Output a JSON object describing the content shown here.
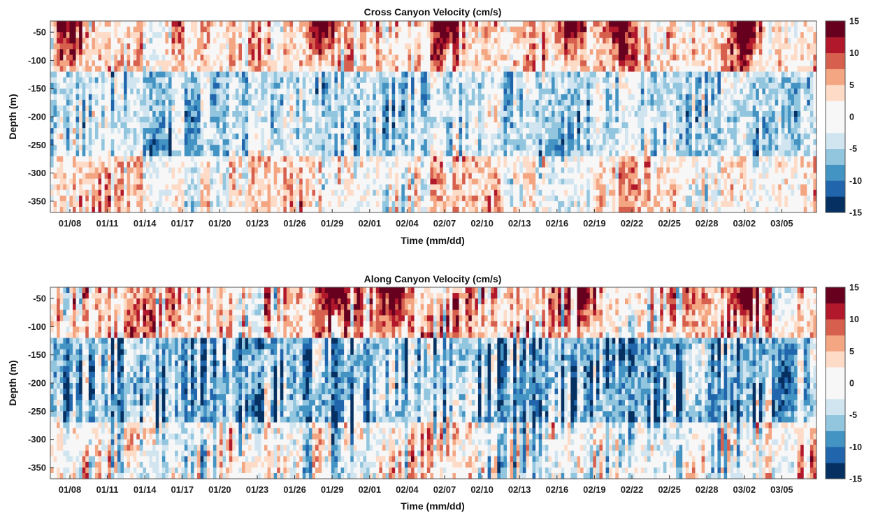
{
  "chart_data": [
    {
      "type": "heatmap",
      "title": "Cross Canyon Velocity (cm/s)",
      "xlabel": "Time (mm/dd)",
      "ylabel": "Depth (m)",
      "x_tick_labels": [
        "01/08",
        "01/11",
        "01/14",
        "01/17",
        "01/20",
        "01/23",
        "01/26",
        "01/29",
        "02/01",
        "02/04",
        "02/07",
        "02/10",
        "02/13",
        "02/16",
        "02/19",
        "02/22",
        "02/25",
        "02/28",
        "03/02",
        "03/05"
      ],
      "y_ticks": [
        -50,
        -100,
        -150,
        -200,
        -250,
        -300,
        -350
      ],
      "ylim": [
        -370,
        -30
      ],
      "colorbar": {
        "ticks": [
          15,
          10,
          5,
          0,
          -5,
          -10,
          -15
        ],
        "range": [
          -15,
          15
        ],
        "levels": 12
      },
      "strong_positive_near_surface_dates": [
        "01/08",
        "01/28",
        "02/07",
        "02/17",
        "02/21",
        "03/02"
      ]
    },
    {
      "type": "heatmap",
      "title": "Along Canyon Velocity (cm/s)",
      "xlabel": "Time (mm/dd)",
      "ylabel": "Depth (m)",
      "x_tick_labels": [
        "01/08",
        "01/11",
        "01/14",
        "01/17",
        "01/20",
        "01/23",
        "01/26",
        "01/29",
        "02/01",
        "02/04",
        "02/07",
        "02/10",
        "02/13",
        "02/16",
        "02/19",
        "02/22",
        "02/25",
        "02/28",
        "03/02",
        "03/05"
      ],
      "y_ticks": [
        -50,
        -100,
        -150,
        -200,
        -250,
        -300,
        -350
      ],
      "ylim": [
        -370,
        -30
      ],
      "colorbar": {
        "ticks": [
          15,
          10,
          5,
          0,
          -5,
          -10,
          -15
        ],
        "range": [
          -15,
          15
        ],
        "levels": 12
      },
      "strong_positive_near_surface_dates": [
        "01/29",
        "02/03",
        "02/18",
        "03/02"
      ]
    }
  ],
  "colormap": [
    "#053061",
    "#2166ac",
    "#4393c3",
    "#92c5de",
    "#d1e5f0",
    "#f7f7f7",
    "#f7f7f7",
    "#fddbc7",
    "#f4a582",
    "#d6604d",
    "#b2182b",
    "#67001f"
  ]
}
